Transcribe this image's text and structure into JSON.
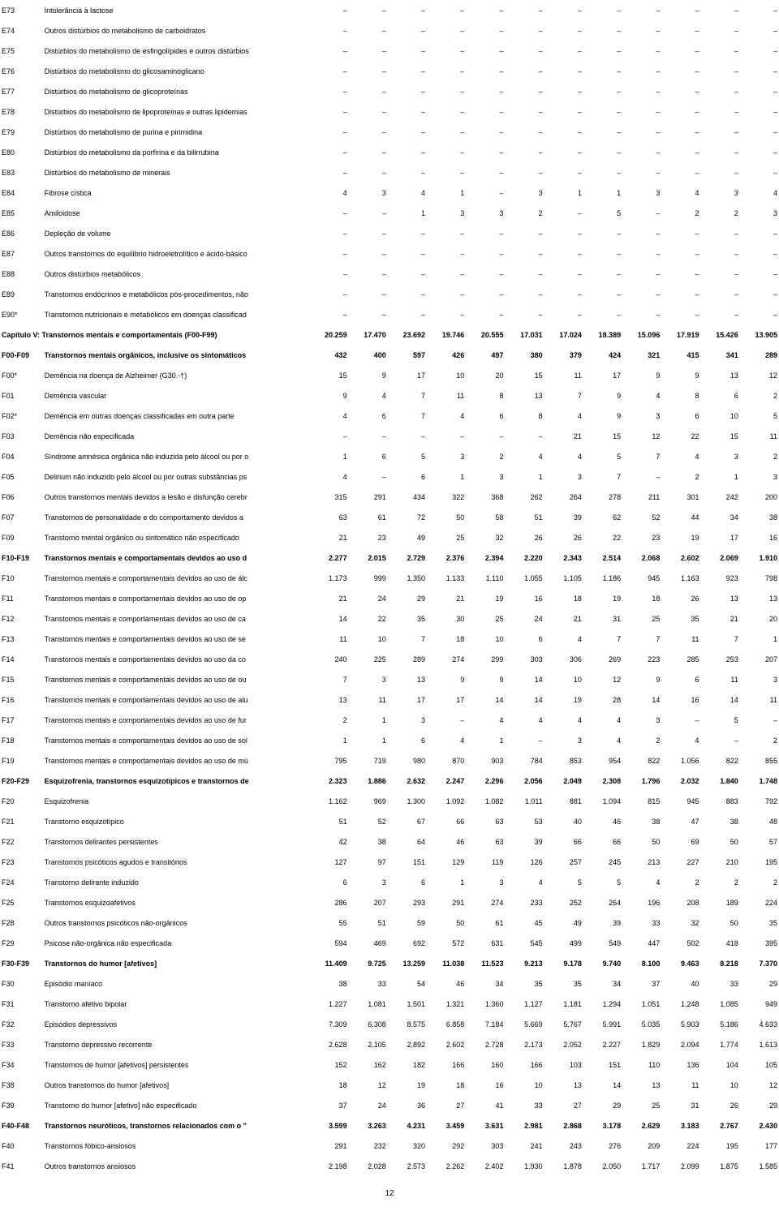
{
  "page_number": "12",
  "col_widths": {
    "code": 48,
    "desc": 300,
    "num": 44
  },
  "rows": [
    {
      "code": "E73",
      "desc": "Intolerância à lactose",
      "vals": [
        "–",
        "–",
        "–",
        "–",
        "–",
        "–",
        "–",
        "–",
        "–",
        "–",
        "–",
        "–"
      ]
    },
    {
      "code": "E74",
      "desc": "Outros distúrbios do metabolismo de carboidratos",
      "vals": [
        "–",
        "–",
        "–",
        "–",
        "–",
        "–",
        "–",
        "–",
        "–",
        "–",
        "–",
        "–"
      ]
    },
    {
      "code": "E75",
      "desc": "Distúrbios do metabolismo de esfingolípides e outros distúrbios",
      "vals": [
        "–",
        "–",
        "–",
        "–",
        "–",
        "–",
        "–",
        "–",
        "–",
        "–",
        "–",
        "–"
      ]
    },
    {
      "code": "E76",
      "desc": "Distúrbios do metabolismo do glicosaminoglicano",
      "vals": [
        "–",
        "–",
        "–",
        "–",
        "–",
        "–",
        "–",
        "–",
        "–",
        "–",
        "–",
        "–"
      ]
    },
    {
      "code": "E77",
      "desc": "Distúrbios do metabolismo de glicoproteínas",
      "vals": [
        "–",
        "–",
        "–",
        "–",
        "–",
        "–",
        "–",
        "–",
        "–",
        "–",
        "–",
        "–"
      ]
    },
    {
      "code": "E78",
      "desc": "Distúrbios do metabolismo de lipoproteínas e outras lipidemias",
      "vals": [
        "–",
        "–",
        "–",
        "–",
        "–",
        "–",
        "–",
        "–",
        "–",
        "–",
        "–",
        "–"
      ]
    },
    {
      "code": "E79",
      "desc": "Distúrbios do metabolismo de purina e pirimidina",
      "vals": [
        "–",
        "–",
        "–",
        "–",
        "–",
        "–",
        "–",
        "–",
        "–",
        "–",
        "–",
        "–"
      ]
    },
    {
      "code": "E80",
      "desc": "Distúrbios do metabolismo da porfirina e da bilirrubina",
      "vals": [
        "–",
        "–",
        "–",
        "–",
        "–",
        "–",
        "–",
        "–",
        "–",
        "–",
        "–",
        "–"
      ]
    },
    {
      "code": "E83",
      "desc": "Distúrbios do metabolismo de minerais",
      "vals": [
        "–",
        "–",
        "–",
        "–",
        "–",
        "–",
        "–",
        "–",
        "–",
        "–",
        "–",
        "–"
      ]
    },
    {
      "code": "E84",
      "desc": "Fibrose cística",
      "vals": [
        "4",
        "3",
        "4",
        "1",
        "–",
        "3",
        "1",
        "1",
        "3",
        "4",
        "3",
        "4"
      ]
    },
    {
      "code": "E85",
      "desc": "Amiloidose",
      "vals": [
        "–",
        "–",
        "1",
        "3",
        "3",
        "2",
        "–",
        "5",
        "–",
        "2",
        "2",
        "3"
      ]
    },
    {
      "code": "E86",
      "desc": "Depleção de volume",
      "vals": [
        "–",
        "–",
        "–",
        "–",
        "–",
        "–",
        "–",
        "–",
        "–",
        "–",
        "–",
        "–"
      ]
    },
    {
      "code": "E87",
      "desc": "Outros transtornos do equilíbrio hidroeletrolítico e ácido-básico",
      "vals": [
        "–",
        "–",
        "–",
        "–",
        "–",
        "–",
        "–",
        "–",
        "–",
        "–",
        "–",
        "–"
      ]
    },
    {
      "code": "E88",
      "desc": "Outros distúrbios metabólicos",
      "vals": [
        "–",
        "–",
        "–",
        "–",
        "–",
        "–",
        "–",
        "–",
        "–",
        "–",
        "–",
        "–"
      ]
    },
    {
      "code": "E89",
      "desc": "Transtornos endócrinos e metabólicos pós-procedimentos, não",
      "vals": [
        "–",
        "–",
        "–",
        "–",
        "–",
        "–",
        "–",
        "–",
        "–",
        "–",
        "–",
        "–"
      ]
    },
    {
      "code": "E90*",
      "desc": "Transtornos nutricionais e metabólicos em doenças classificad",
      "vals": [
        "–",
        "–",
        "–",
        "–",
        "–",
        "–",
        "–",
        "–",
        "–",
        "–",
        "–",
        "–"
      ]
    },
    {
      "bold": true,
      "full": "Capítulo V: Transtornos mentais e comportamentais (F00-F99)",
      "vals": [
        "20.259",
        "17.470",
        "23.692",
        "19.746",
        "20.555",
        "17.031",
        "17.024",
        "18.389",
        "15.096",
        "17.919",
        "15.426",
        "13.905"
      ]
    },
    {
      "bold": true,
      "code": "F00-F09",
      "desc": "Transtornos mentais orgânicos, inclusive os sintomáticos",
      "vals": [
        "432",
        "400",
        "597",
        "426",
        "497",
        "380",
        "379",
        "424",
        "321",
        "415",
        "341",
        "289"
      ]
    },
    {
      "code": "F00*",
      "desc": "Demência na doença de Alzheimer (G30.-†)",
      "vals": [
        "15",
        "9",
        "17",
        "10",
        "20",
        "15",
        "11",
        "17",
        "9",
        "9",
        "13",
        "12"
      ]
    },
    {
      "code": "F01",
      "desc": "Demência vascular",
      "vals": [
        "9",
        "4",
        "7",
        "11",
        "8",
        "13",
        "7",
        "9",
        "4",
        "8",
        "6",
        "2"
      ]
    },
    {
      "code": "F02*",
      "desc": "Demência em outras doenças classificadas em outra parte",
      "vals": [
        "4",
        "6",
        "7",
        "4",
        "6",
        "8",
        "4",
        "9",
        "3",
        "6",
        "10",
        "5"
      ]
    },
    {
      "code": "F03",
      "desc": "Demência não especificada",
      "vals": [
        "–",
        "–",
        "–",
        "–",
        "–",
        "–",
        "21",
        "15",
        "12",
        "22",
        "15",
        "11"
      ]
    },
    {
      "code": "F04",
      "desc": "Síndrome amnésica orgânica não induzida pelo álcool ou por o",
      "vals": [
        "1",
        "6",
        "5",
        "3",
        "2",
        "4",
        "4",
        "5",
        "7",
        "4",
        "3",
        "2"
      ]
    },
    {
      "code": "F05",
      "desc": "Delirium não induzido pelo álcool ou por outras substâncias ps",
      "vals": [
        "4",
        "–",
        "6",
        "1",
        "3",
        "1",
        "3",
        "7",
        "–",
        "2",
        "1",
        "3"
      ]
    },
    {
      "code": "F06",
      "desc": "Outros transtornos mentais devidos a lesão e disfunção cerebr",
      "vals": [
        "315",
        "291",
        "434",
        "322",
        "368",
        "262",
        "264",
        "278",
        "211",
        "301",
        "242",
        "200"
      ]
    },
    {
      "code": "F07",
      "desc": "Transtornos de personalidade e do comportamento devidos a",
      "vals": [
        "63",
        "61",
        "72",
        "50",
        "58",
        "51",
        "39",
        "62",
        "52",
        "44",
        "34",
        "38"
      ]
    },
    {
      "code": "F09",
      "desc": "Transtorno mental orgânico ou sintomático não especificado",
      "vals": [
        "21",
        "23",
        "49",
        "25",
        "32",
        "26",
        "26",
        "22",
        "23",
        "19",
        "17",
        "16"
      ]
    },
    {
      "bold": true,
      "code": "F10-F19",
      "desc": "Transtornos mentais e comportamentais devidos ao uso d",
      "vals": [
        "2.277",
        "2.015",
        "2.729",
        "2.376",
        "2.394",
        "2.220",
        "2.343",
        "2.514",
        "2.068",
        "2.602",
        "2.069",
        "1.910"
      ]
    },
    {
      "code": "F10",
      "desc": "Transtornos mentais e comportamentais devidos ao uso de álc",
      "vals": [
        "1.173",
        "999",
        "1.350",
        "1.133",
        "1.110",
        "1.055",
        "1.105",
        "1.186",
        "945",
        "1.163",
        "923",
        "798"
      ]
    },
    {
      "code": "F11",
      "desc": "Transtornos mentais e comportamentais devidos ao uso de op",
      "vals": [
        "21",
        "24",
        "29",
        "21",
        "19",
        "16",
        "18",
        "19",
        "18",
        "26",
        "13",
        "13"
      ]
    },
    {
      "code": "F12",
      "desc": "Transtornos mentais e comportamentais devidos ao uso de ca",
      "vals": [
        "14",
        "22",
        "35",
        "30",
        "25",
        "24",
        "21",
        "31",
        "25",
        "35",
        "21",
        "20"
      ]
    },
    {
      "code": "F13",
      "desc": "Transtornos mentais e comportamentais devidos ao uso de se",
      "vals": [
        "11",
        "10",
        "7",
        "18",
        "10",
        "6",
        "4",
        "7",
        "7",
        "11",
        "7",
        "1"
      ]
    },
    {
      "code": "F14",
      "desc": "Transtornos mentais e comportamentais devidos ao uso da co",
      "vals": [
        "240",
        "225",
        "289",
        "274",
        "299",
        "303",
        "306",
        "269",
        "223",
        "285",
        "253",
        "207"
      ]
    },
    {
      "code": "F15",
      "desc": "Transtornos mentais e comportamentais devidos ao uso de ou",
      "vals": [
        "7",
        "3",
        "13",
        "9",
        "9",
        "14",
        "10",
        "12",
        "9",
        "6",
        "11",
        "3"
      ]
    },
    {
      "code": "F16",
      "desc": "Transtornos mentais e comportamentais devidos ao uso de alu",
      "vals": [
        "13",
        "11",
        "17",
        "17",
        "14",
        "14",
        "19",
        "28",
        "14",
        "16",
        "14",
        "11"
      ]
    },
    {
      "code": "F17",
      "desc": "Transtornos mentais e comportamentais devidos ao uso de fur",
      "vals": [
        "2",
        "1",
        "3",
        "–",
        "4",
        "4",
        "4",
        "4",
        "3",
        "–",
        "5",
        "–"
      ]
    },
    {
      "code": "F18",
      "desc": "Transtornos mentais e comportamentais devidos ao uso de sol",
      "vals": [
        "1",
        "1",
        "6",
        "4",
        "1",
        "–",
        "3",
        "4",
        "2",
        "4",
        "–",
        "2"
      ]
    },
    {
      "code": "F19",
      "desc": "Transtornos mentais e comportamentais devidos ao uso de mú",
      "vals": [
        "795",
        "719",
        "980",
        "870",
        "903",
        "784",
        "853",
        "954",
        "822",
        "1.056",
        "822",
        "855"
      ]
    },
    {
      "bold": true,
      "code": "F20-F29",
      "desc": "Esquizofrenia, transtornos esquizotípicos e transtornos de",
      "vals": [
        "2.323",
        "1.886",
        "2.632",
        "2.247",
        "2.296",
        "2.056",
        "2.049",
        "2.308",
        "1.796",
        "2.032",
        "1.840",
        "1.748"
      ]
    },
    {
      "code": "F20",
      "desc": "Esquizofrenia",
      "vals": [
        "1.162",
        "969",
        "1.300",
        "1.092",
        "1.082",
        "1.011",
        "881",
        "1.094",
        "815",
        "945",
        "883",
        "792"
      ]
    },
    {
      "code": "F21",
      "desc": "Transtorno esquizotípico",
      "vals": [
        "51",
        "52",
        "67",
        "66",
        "63",
        "53",
        "40",
        "46",
        "38",
        "47",
        "38",
        "48"
      ]
    },
    {
      "code": "F22",
      "desc": "Transtornos delirantes persistentes",
      "vals": [
        "42",
        "38",
        "64",
        "46",
        "63",
        "39",
        "66",
        "66",
        "50",
        "69",
        "50",
        "57"
      ]
    },
    {
      "code": "F23",
      "desc": "Transtornos psicóticos agudos e transitórios",
      "vals": [
        "127",
        "97",
        "151",
        "129",
        "119",
        "126",
        "257",
        "245",
        "213",
        "227",
        "210",
        "195"
      ]
    },
    {
      "code": "F24",
      "desc": "Transtorno delirante induzido",
      "vals": [
        "6",
        "3",
        "6",
        "1",
        "3",
        "4",
        "5",
        "5",
        "4",
        "2",
        "2",
        "2"
      ]
    },
    {
      "code": "F25",
      "desc": "Transtornos esquizoafetivos",
      "vals": [
        "286",
        "207",
        "293",
        "291",
        "274",
        "233",
        "252",
        "264",
        "196",
        "208",
        "189",
        "224"
      ]
    },
    {
      "code": "F28",
      "desc": "Outros transtornos psicóticos não-orgânicos",
      "vals": [
        "55",
        "51",
        "59",
        "50",
        "61",
        "45",
        "49",
        "39",
        "33",
        "32",
        "50",
        "35"
      ]
    },
    {
      "code": "F29",
      "desc": "Psicose não-orgânica não especificada",
      "vals": [
        "594",
        "469",
        "692",
        "572",
        "631",
        "545",
        "499",
        "549",
        "447",
        "502",
        "418",
        "395"
      ]
    },
    {
      "bold": true,
      "code": "F30-F39",
      "desc": "Transtornos do humor [afetivos]",
      "vals": [
        "11.409",
        "9.725",
        "13.259",
        "11.038",
        "11.523",
        "9.213",
        "9.178",
        "9.740",
        "8.100",
        "9.463",
        "8.218",
        "7.370"
      ]
    },
    {
      "code": "F30",
      "desc": "Episódio maníaco",
      "vals": [
        "38",
        "33",
        "54",
        "46",
        "34",
        "35",
        "35",
        "34",
        "37",
        "40",
        "33",
        "29"
      ]
    },
    {
      "code": "F31",
      "desc": "Transtorno afetivo bipolar",
      "vals": [
        "1.227",
        "1.081",
        "1.501",
        "1.321",
        "1.360",
        "1.127",
        "1.181",
        "1.294",
        "1.051",
        "1.248",
        "1.085",
        "949"
      ]
    },
    {
      "code": "F32",
      "desc": "Episódios depressivos",
      "vals": [
        "7.309",
        "6.308",
        "8.575",
        "6.858",
        "7.184",
        "5.669",
        "5.767",
        "5.991",
        "5.035",
        "5.903",
        "5.186",
        "4.633"
      ]
    },
    {
      "code": "F33",
      "desc": "Transtorno depressivo recorrente",
      "vals": [
        "2.628",
        "2.105",
        "2.892",
        "2.602",
        "2.728",
        "2.173",
        "2.052",
        "2.227",
        "1.829",
        "2.094",
        "1.774",
        "1.613"
      ]
    },
    {
      "code": "F34",
      "desc": "Transtornos de humor [afetivos] persistentes",
      "vals": [
        "152",
        "162",
        "182",
        "166",
        "160",
        "166",
        "103",
        "151",
        "110",
        "136",
        "104",
        "105"
      ]
    },
    {
      "code": "F38",
      "desc": "Outros transtornos do humor [afetivos]",
      "vals": [
        "18",
        "12",
        "19",
        "18",
        "16",
        "10",
        "13",
        "14",
        "13",
        "11",
        "10",
        "12"
      ]
    },
    {
      "code": "F39",
      "desc": "Transtorno do humor [afetivo] não especificado",
      "vals": [
        "37",
        "24",
        "36",
        "27",
        "41",
        "33",
        "27",
        "29",
        "25",
        "31",
        "26",
        "29"
      ]
    },
    {
      "bold": true,
      "code": "F40-F48",
      "desc": "Transtornos neuróticos, transtornos relacionados com o \"",
      "vals": [
        "3.599",
        "3.263",
        "4.231",
        "3.459",
        "3.631",
        "2.981",
        "2.868",
        "3.178",
        "2.629",
        "3.183",
        "2.767",
        "2.430"
      ]
    },
    {
      "code": "F40",
      "desc": "Transtornos fóbico-ansiosos",
      "vals": [
        "291",
        "232",
        "320",
        "292",
        "303",
        "241",
        "243",
        "276",
        "209",
        "224",
        "195",
        "177"
      ]
    },
    {
      "code": "F41",
      "desc": "Outros transtornos ansiosos",
      "vals": [
        "2.198",
        "2.028",
        "2.573",
        "2.262",
        "2.402",
        "1.930",
        "1.878",
        "2.050",
        "1.717",
        "2.099",
        "1.875",
        "1.585"
      ]
    }
  ]
}
